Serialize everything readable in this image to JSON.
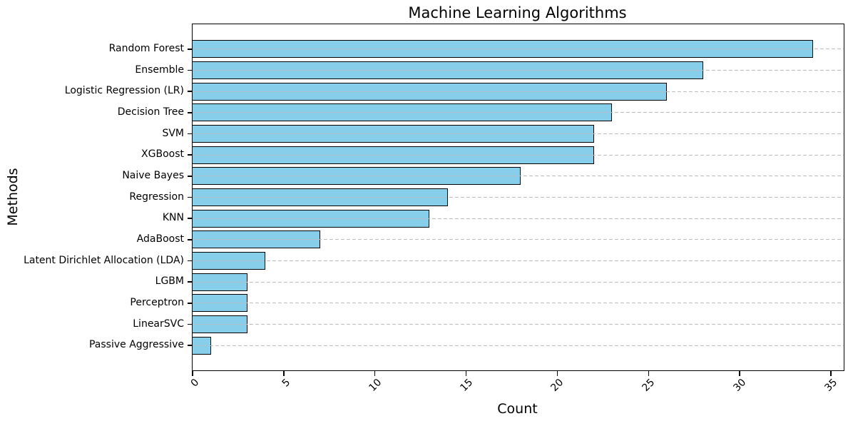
{
  "chart_data": {
    "type": "bar",
    "orientation": "horizontal",
    "title": "Machine Learning Algorithms",
    "xlabel": "Count",
    "ylabel": "Methods",
    "categories": [
      "Random Forest",
      "Ensemble",
      "Logistic Regression (LR)",
      "Decision Tree",
      "SVM",
      "XGBoost",
      "Naive Bayes",
      "Regression",
      "KNN",
      "AdaBoost",
      "Latent Dirichlet Allocation (LDA)",
      "LGBM",
      "Perceptron",
      "LinearSVC",
      "Passive Aggressive"
    ],
    "values": [
      34,
      28,
      26,
      23,
      22,
      22,
      18,
      14,
      13,
      7,
      4,
      3,
      3,
      3,
      1
    ],
    "xticks": [
      0,
      5,
      10,
      15,
      20,
      25,
      30,
      35
    ],
    "xlim": [
      0,
      35.7
    ],
    "grid": "horizontal-dashed-over-bars",
    "legend": "none",
    "bar_color": "#87CEEB",
    "bar_edge_color": "#000000",
    "grid_color": "#bdbdbd",
    "background_color": "#ffffff"
  }
}
